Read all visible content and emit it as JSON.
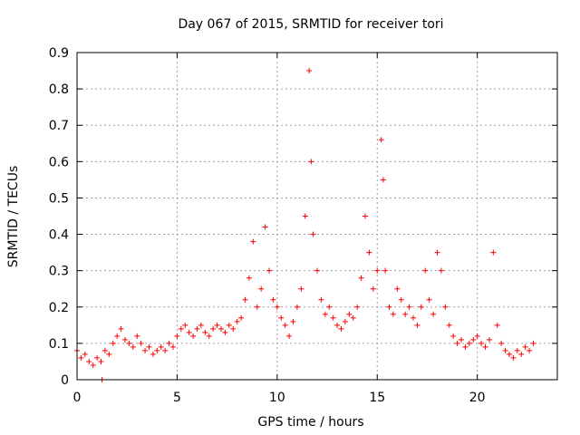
{
  "chart_data": {
    "type": "scatter",
    "title": "Day 067 of 2015, SRMTID for receiver tori",
    "xlabel": "GPS time / hours",
    "ylabel": "SRMTID / TECUs",
    "xlim": [
      0,
      24
    ],
    "ylim": [
      0,
      0.9
    ],
    "xticks": [
      0,
      5,
      10,
      15,
      20
    ],
    "xtick_labels": [
      "0",
      "5",
      "10",
      "15",
      "20"
    ],
    "yticks": [
      0,
      0.1,
      0.2,
      0.3,
      0.4,
      0.5,
      0.6,
      0.7,
      0.8,
      0.9
    ],
    "ytick_labels": [
      "0",
      "0.1",
      "0.2",
      "0.3",
      "0.4",
      "0.5",
      "0.6",
      "0.7",
      "0.8",
      "0.9"
    ],
    "grid": true,
    "marker": "+",
    "color": "#ff0000",
    "series": [
      {
        "name": "SRMTID",
        "x": [
          0.0,
          0.2,
          0.4,
          0.6,
          0.8,
          1.0,
          1.2,
          1.25,
          1.4,
          1.6,
          1.8,
          2.0,
          2.2,
          2.4,
          2.6,
          2.8,
          3.0,
          3.2,
          3.4,
          3.6,
          3.8,
          4.0,
          4.2,
          4.4,
          4.6,
          4.8,
          5.0,
          5.2,
          5.4,
          5.6,
          5.8,
          6.0,
          6.2,
          6.4,
          6.6,
          6.8,
          7.0,
          7.2,
          7.4,
          7.6,
          7.8,
          8.0,
          8.2,
          8.4,
          8.6,
          8.8,
          9.0,
          9.2,
          9.4,
          9.6,
          9.8,
          10.0,
          10.2,
          10.4,
          10.6,
          10.8,
          11.0,
          11.2,
          11.4,
          11.6,
          11.7,
          11.8,
          12.0,
          12.2,
          12.4,
          12.6,
          12.8,
          13.0,
          13.2,
          13.4,
          13.6,
          13.8,
          14.0,
          14.2,
          14.4,
          14.6,
          14.8,
          15.0,
          15.2,
          15.3,
          15.4,
          15.6,
          15.8,
          16.0,
          16.2,
          16.4,
          16.6,
          16.8,
          17.0,
          17.2,
          17.4,
          17.6,
          17.8,
          18.0,
          18.2,
          18.4,
          18.6,
          18.8,
          19.0,
          19.2,
          19.4,
          19.6,
          19.8,
          20.0,
          20.2,
          20.4,
          20.6,
          20.8,
          21.0,
          21.2,
          21.4,
          21.6,
          21.8,
          22.0,
          22.2,
          22.4,
          22.6,
          22.8
        ],
        "y": [
          0.08,
          0.06,
          0.07,
          0.05,
          0.04,
          0.06,
          0.05,
          0.0,
          0.08,
          0.07,
          0.1,
          0.12,
          0.14,
          0.11,
          0.1,
          0.09,
          0.12,
          0.1,
          0.08,
          0.09,
          0.07,
          0.08,
          0.09,
          0.08,
          0.1,
          0.09,
          0.12,
          0.14,
          0.15,
          0.13,
          0.12,
          0.14,
          0.15,
          0.13,
          0.12,
          0.14,
          0.15,
          0.14,
          0.13,
          0.15,
          0.14,
          0.16,
          0.17,
          0.22,
          0.28,
          0.38,
          0.2,
          0.25,
          0.42,
          0.3,
          0.22,
          0.2,
          0.17,
          0.15,
          0.12,
          0.16,
          0.2,
          0.25,
          0.45,
          0.85,
          0.6,
          0.4,
          0.3,
          0.22,
          0.18,
          0.2,
          0.17,
          0.15,
          0.14,
          0.16,
          0.18,
          0.17,
          0.2,
          0.28,
          0.45,
          0.35,
          0.25,
          0.3,
          0.66,
          0.55,
          0.3,
          0.2,
          0.18,
          0.25,
          0.22,
          0.18,
          0.2,
          0.17,
          0.15,
          0.2,
          0.3,
          0.22,
          0.18,
          0.35,
          0.3,
          0.2,
          0.15,
          0.12,
          0.1,
          0.11,
          0.09,
          0.1,
          0.11,
          0.12,
          0.1,
          0.09,
          0.11,
          0.35,
          0.15,
          0.1,
          0.08,
          0.07,
          0.06,
          0.08,
          0.07,
          0.09,
          0.08,
          0.1
        ]
      }
    ]
  }
}
